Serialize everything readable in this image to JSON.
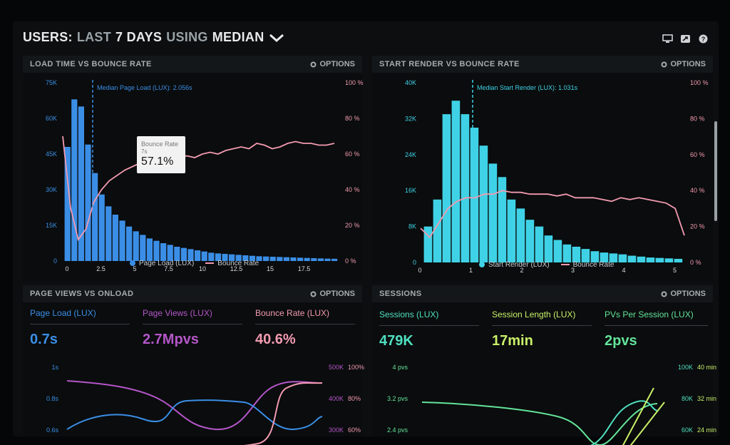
{
  "header": {
    "title_users": "USERS:",
    "title_last": "LAST",
    "title_days": "7 DAYS",
    "title_using": "USING",
    "title_median": "MEDIAN"
  },
  "colors": {
    "blue": "#3b8ee6",
    "cyan": "#3fd2e6",
    "pink": "#f29ab0",
    "purple": "#b456c8",
    "lime": "#c9f06a",
    "green": "#63e39a",
    "teal": "#4fe0c0"
  },
  "panels": {
    "p1": {
      "title": "LOAD TIME VS BOUNCE RATE",
      "options": "OPTIONS",
      "median_label": "Median Page Load (LUX): 2.056s",
      "legend_a": "Page Load (LUX)",
      "legend_b": "Bounce Rate",
      "tooltip_title": "Bounce Rate",
      "tooltip_sub": "7s",
      "tooltip_value": "57.1%"
    },
    "p2": {
      "title": "START RENDER VS BOUNCE RATE",
      "options": "OPTIONS",
      "median_label": "Median Start Render (LUX): 1.031s",
      "legend_a": "Start Render (LUX)",
      "legend_b": "Bounce Rate"
    },
    "p3": {
      "title": "PAGE VIEWS VS ONLOAD",
      "options": "OPTIONS",
      "metrics": [
        {
          "label": "Page Load (LUX)",
          "value": "0.7s"
        },
        {
          "label": "Page Views (LUX)",
          "value": "2.7Mpvs"
        },
        {
          "label": "Bounce Rate (LUX)",
          "value": "40.6%"
        }
      ],
      "y_left": [
        "1s",
        "0.8s",
        "0.6s"
      ],
      "y_mid": [
        "500K",
        "400K",
        "300K"
      ],
      "y_right": [
        "100%",
        "80%",
        "60%"
      ]
    },
    "p4": {
      "title": "SESSIONS",
      "options": "OPTIONS",
      "metrics": [
        {
          "label": "Sessions (LUX)",
          "value": "479K"
        },
        {
          "label": "Session Length (LUX)",
          "value": "17min"
        },
        {
          "label": "PVs Per Session (LUX)",
          "value": "2pvs"
        }
      ],
      "y_left": [
        "4 pvs",
        "3.2 pvs",
        "2.4 pvs"
      ],
      "y_mid": [
        "100K",
        "80K",
        "60K"
      ],
      "y_right": [
        "40 min",
        "32 min",
        "24 min"
      ]
    }
  },
  "chart_data": [
    {
      "type": "bar",
      "title": "LOAD TIME VS BOUNCE RATE",
      "x_ticks": [
        "0",
        "2.5",
        "5",
        "7.5",
        "10",
        "12.5",
        "15",
        "17.5"
      ],
      "y_left_ticks": [
        "0",
        "15K",
        "30K",
        "45K",
        "60K",
        "75K"
      ],
      "y_right_ticks": [
        "0 %",
        "20 %",
        "40 %",
        "60 %",
        "80 %",
        "100 %"
      ],
      "series": [
        {
          "name": "Page Load (LUX)",
          "values": [
            48000,
            68000,
            65000,
            49000,
            37000,
            28000,
            23000,
            19500,
            17000,
            14500,
            12500,
            11000,
            9500,
            8500,
            7500,
            6800,
            6000,
            5500,
            5000,
            4500,
            4000,
            3500,
            3200,
            3000,
            2800,
            2600,
            2400,
            2200,
            2000,
            1900,
            1800,
            1700,
            1600,
            1500,
            1400,
            1300,
            1200,
            1100,
            1000,
            950
          ]
        },
        {
          "name": "Bounce Rate",
          "values": [
            70,
            30,
            12,
            18,
            33,
            40,
            45,
            48,
            51,
            53,
            55,
            56,
            57,
            57.5,
            57,
            58,
            59,
            58,
            60,
            61,
            60,
            62,
            63,
            64,
            63,
            66,
            65,
            63,
            64,
            66,
            67,
            66,
            66,
            65,
            65,
            66
          ]
        }
      ],
      "ylim": [
        0,
        75000
      ]
    },
    {
      "type": "bar",
      "title": "START RENDER VS BOUNCE RATE",
      "x_ticks": [
        "0",
        "1",
        "2",
        "3",
        "4",
        "5"
      ],
      "y_left_ticks": [
        "0",
        "8K",
        "16K",
        "24K",
        "32K",
        "40K"
      ],
      "y_right_ticks": [
        "0 %",
        "20 %",
        "40 %",
        "60 %",
        "80 %",
        "100 %"
      ],
      "series": [
        {
          "name": "Start Render (LUX)",
          "values": [
            8000,
            14000,
            33000,
            36000,
            33000,
            30000,
            26000,
            22000,
            19000,
            14000,
            12000,
            9500,
            8000,
            6000,
            5000,
            4000,
            3500,
            3000,
            2500,
            2200,
            2000,
            1800,
            1500,
            1300,
            1100,
            1000,
            900,
            800
          ]
        },
        {
          "name": "Bounce Rate",
          "values": [
            19,
            14,
            22,
            30,
            34,
            36,
            36,
            38,
            38,
            40,
            39,
            39,
            38,
            38,
            38,
            37,
            38,
            36,
            36,
            36,
            35,
            34,
            36,
            35,
            36,
            35,
            34,
            33,
            30,
            15
          ]
        }
      ],
      "ylim": [
        0,
        40000
      ]
    }
  ]
}
